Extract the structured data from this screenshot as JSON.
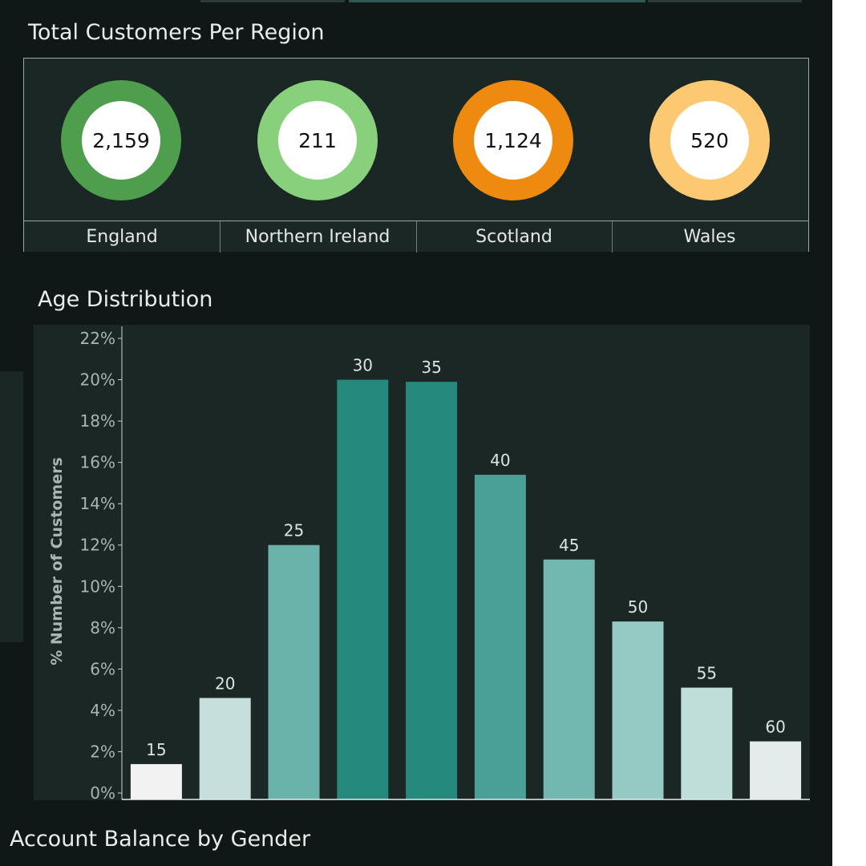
{
  "region_section": {
    "title": "Total Customers Per Region",
    "regions": [
      {
        "name": "England",
        "value": "2,159",
        "color": "#4e9e4d"
      },
      {
        "name": "Northern Ireland",
        "value": "211",
        "color": "#88d07c"
      },
      {
        "name": "Scotland",
        "value": "1,124",
        "color": "#ef8a10"
      },
      {
        "name": "Wales",
        "value": "520",
        "color": "#fdc872"
      }
    ]
  },
  "age_section": {
    "title": "Age Distribution"
  },
  "balance_section": {
    "title": "Account Balance by  Gender"
  },
  "chart_data": {
    "type": "bar",
    "title": "Age Distribution",
    "xlabel": "",
    "ylabel": "% Number of Customers",
    "ylim": [
      0,
      22
    ],
    "yticks": [
      "0%",
      "2%",
      "4%",
      "6%",
      "8%",
      "10%",
      "12%",
      "14%",
      "16%",
      "18%",
      "20%",
      "22%"
    ],
    "categories": [
      "15",
      "20",
      "25",
      "30",
      "35",
      "40",
      "45",
      "50",
      "55",
      "60"
    ],
    "values": [
      1.4,
      4.6,
      12.0,
      20.0,
      19.9,
      15.4,
      11.3,
      8.3,
      5.1,
      2.5
    ],
    "bar_colors": [
      "#f2f2f2",
      "#c6dfdc",
      "#6ab3aa",
      "#258a7d",
      "#258a7d",
      "#4a9f96",
      "#72b8b0",
      "#95cac4",
      "#bfddd9",
      "#e4eceb"
    ],
    "data_labels": [
      "15",
      "20",
      "25",
      "30",
      "35",
      "40",
      "45",
      "50",
      "55",
      "60"
    ],
    "grid": false
  }
}
